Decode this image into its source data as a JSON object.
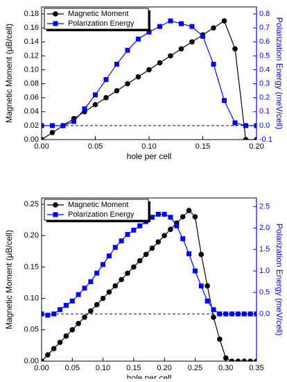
{
  "chart_data": [
    {
      "type": "line",
      "xlabel": "hole per cell",
      "ylabel": "Magnetic Moment (μB/cell)",
      "y2label": "Polarization Energy (meV/cell)",
      "x": [
        0,
        0.01,
        0.02,
        0.03,
        0.04,
        0.05,
        0.06,
        0.07,
        0.08,
        0.09,
        0.1,
        0.11,
        0.12,
        0.13,
        0.14,
        0.15,
        0.16,
        0.17,
        0.18,
        0.19,
        0.2
      ],
      "series": [
        {
          "name": "Magnetic Moment",
          "color": "#000000",
          "marker": "circle",
          "axis": "y",
          "values": [
            0,
            0.01,
            0.02,
            0.03,
            0.04,
            0.05,
            0.06,
            0.07,
            0.08,
            0.09,
            0.1,
            0.11,
            0.12,
            0.13,
            0.14,
            0.15,
            0.16,
            0.17,
            0.13,
            0,
            0
          ]
        },
        {
          "name": "Polarization Energy",
          "color": "#0000ff",
          "marker": "square",
          "axis": "y2",
          "values": [
            0,
            0,
            0,
            0.03,
            0.12,
            0.22,
            0.33,
            0.44,
            0.54,
            0.62,
            0.67,
            0.71,
            0.75,
            0.73,
            0.71,
            0.64,
            0.44,
            0.18,
            0.02,
            0,
            0
          ]
        }
      ],
      "xlim": [
        0,
        0.2
      ],
      "xticks": [
        {
          "value": 0,
          "label": "0.00"
        },
        0.05,
        {
          "value": 0.1,
          "label": "0.10"
        },
        0.15,
        {
          "value": 0.2,
          "label": "0.20"
        }
      ],
      "ylim": [
        0,
        0.19
      ],
      "yticks": [
        {
          "value": 0,
          "label": "0.00"
        },
        0.02,
        0.04,
        0.06,
        0.08,
        {
          "value": 0.1,
          "label": "0.10"
        },
        0.12,
        0.14,
        0.16,
        0.18
      ],
      "y2lim": [
        -0.1,
        0.85
      ],
      "y2ticks": [
        -0.1,
        {
          "value": 0,
          "label": "0.0"
        },
        0.1,
        0.2,
        0.3,
        0.4,
        0.5,
        0.6,
        0.7,
        0.8
      ],
      "reference_line_y2": 0,
      "legend": "upper left"
    },
    {
      "type": "line",
      "xlabel": "hole per cell",
      "ylabel": "Magnetic Moment (μB/cell)",
      "y2label": "Polarization Energy (meV/cell)",
      "x": [
        0,
        0.01,
        0.02,
        0.03,
        0.04,
        0.05,
        0.06,
        0.07,
        0.08,
        0.09,
        0.1,
        0.11,
        0.12,
        0.13,
        0.14,
        0.15,
        0.16,
        0.17,
        0.18,
        0.19,
        0.2,
        0.21,
        0.22,
        0.23,
        0.24,
        0.25,
        0.26,
        0.27,
        0.28,
        0.29,
        0.3,
        0.31,
        0.32,
        0.33,
        0.34,
        0.35
      ],
      "series": [
        {
          "name": "Magnetic Moment",
          "color": "#000000",
          "marker": "circle",
          "axis": "y",
          "values": [
            0,
            0.01,
            0.02,
            0.03,
            0.04,
            0.05,
            0.06,
            0.07,
            0.08,
            0.09,
            0.1,
            0.11,
            0.12,
            0.13,
            0.14,
            0.15,
            0.16,
            0.17,
            0.18,
            0.19,
            0.2,
            0.21,
            0.22,
            0.23,
            0.24,
            0.23,
            0.17,
            0.12,
            0.07,
            0.035,
            0.005,
            0,
            0,
            0,
            0,
            0
          ]
        },
        {
          "name": "Polarization Energy",
          "color": "#0000ff",
          "marker": "square",
          "axis": "y2",
          "values": [
            0,
            -0.03,
            0,
            0.1,
            0.2,
            0.3,
            0.45,
            0.6,
            0.75,
            0.95,
            1.15,
            1.35,
            1.55,
            1.7,
            1.85,
            1.95,
            2.05,
            2.15,
            2.25,
            2.32,
            2.32,
            2.25,
            2.05,
            1.75,
            1.4,
            1.0,
            0.65,
            0.3,
            0.1,
            0,
            0,
            0,
            0,
            0,
            0,
            0
          ]
        }
      ],
      "xlim": [
        0,
        0.35
      ],
      "xticks": [
        {
          "value": 0,
          "label": "0.00"
        },
        0.05,
        {
          "value": 0.1,
          "label": "0.10"
        },
        0.15,
        {
          "value": 0.2,
          "label": "0.20"
        },
        0.25,
        {
          "value": 0.3,
          "label": "0.30"
        },
        0.35
      ],
      "ylim": [
        0,
        0.26
      ],
      "yticks": [
        {
          "value": 0,
          "label": "0.00"
        },
        0.05,
        {
          "value": 0.1,
          "label": "0.10"
        },
        0.15,
        {
          "value": 0.2,
          "label": "0.20"
        },
        0.25
      ],
      "y2lim": [
        -1.1,
        2.7
      ],
      "y2ticks": [
        {
          "value": 0,
          "label": "0.0"
        },
        0.5,
        {
          "value": 1,
          "label": "1.0"
        },
        1.5,
        {
          "value": 2,
          "label": "2.0"
        },
        2.5
      ],
      "reference_line_y2": 0,
      "legend": "upper left"
    }
  ]
}
